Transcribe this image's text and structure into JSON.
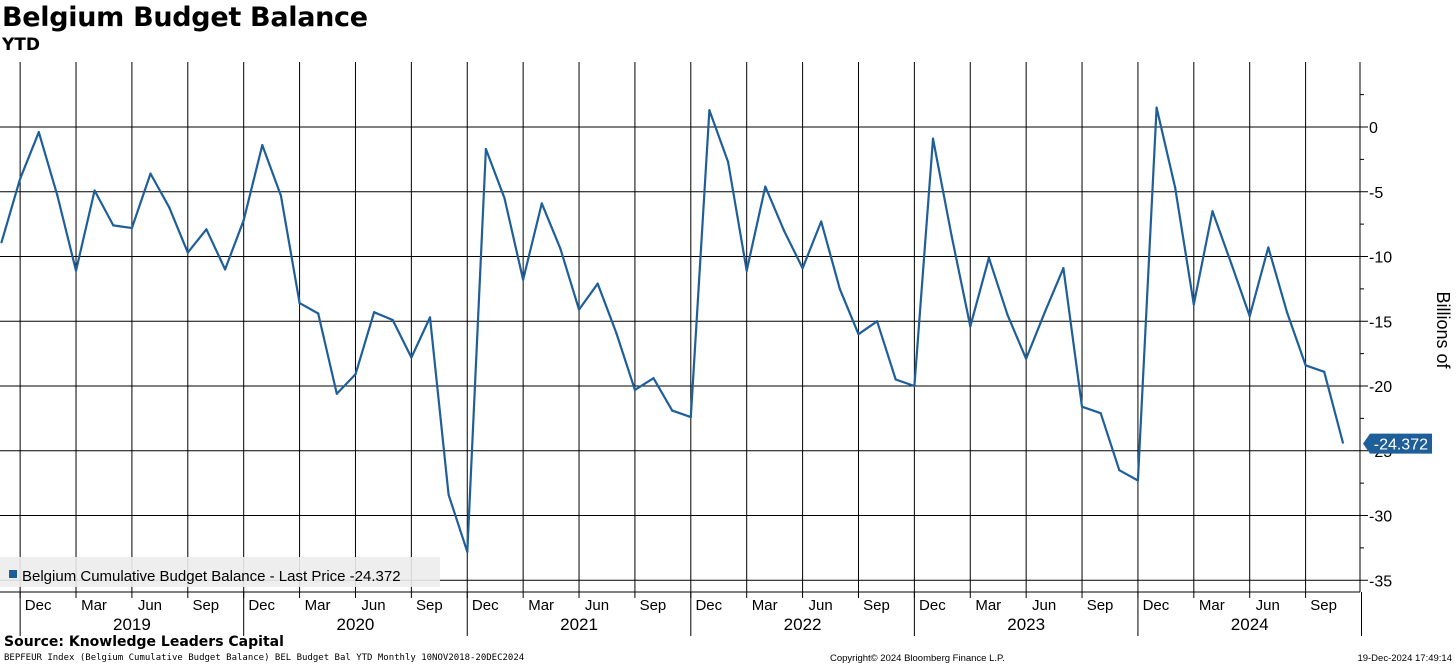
{
  "chart_data": {
    "type": "line",
    "title": "Belgium Budget Balance",
    "subtitle": "YTD",
    "ylabel": "Billions of",
    "ylim": [
      -36,
      5
    ],
    "yticks": [
      0,
      -5,
      -10,
      -15,
      -20,
      -25,
      -30,
      -35
    ],
    "month_ticks": [
      "Dec",
      "Mar",
      "Jun",
      "Sep",
      "Dec",
      "Mar",
      "Jun",
      "Sep",
      "Dec",
      "Mar",
      "Jun",
      "Sep",
      "Dec",
      "Mar",
      "Jun",
      "Sep",
      "Dec",
      "Mar",
      "Jun",
      "Sep",
      "Dec",
      "Mar",
      "Jun",
      "Sep"
    ],
    "year_labels": [
      "2019",
      "2020",
      "2021",
      "2022",
      "2023",
      "2024"
    ],
    "grid": true,
    "legend_position": "bottom-left",
    "series": [
      {
        "name": "Belgium Cumulative Budget Balance - Last Price -24.372",
        "color": "#1f5f99",
        "x": [
          "2018-11",
          "2018-12",
          "2019-01",
          "2019-02",
          "2019-03",
          "2019-04",
          "2019-05",
          "2019-06",
          "2019-07",
          "2019-08",
          "2019-09",
          "2019-10",
          "2019-11",
          "2019-12",
          "2020-01",
          "2020-02",
          "2020-03",
          "2020-04",
          "2020-05",
          "2020-06",
          "2020-07",
          "2020-08",
          "2020-09",
          "2020-10",
          "2020-11",
          "2020-12",
          "2021-01",
          "2021-02",
          "2021-03",
          "2021-04",
          "2021-05",
          "2021-06",
          "2021-07",
          "2021-08",
          "2021-09",
          "2021-10",
          "2021-11",
          "2021-12",
          "2022-01",
          "2022-02",
          "2022-03",
          "2022-04",
          "2022-05",
          "2022-06",
          "2022-07",
          "2022-08",
          "2022-09",
          "2022-10",
          "2022-11",
          "2022-12",
          "2023-01",
          "2023-02",
          "2023-03",
          "2023-04",
          "2023-05",
          "2023-06",
          "2023-07",
          "2023-08",
          "2023-09",
          "2023-10",
          "2023-11",
          "2023-12",
          "2024-01",
          "2024-02",
          "2024-03",
          "2024-04",
          "2024-05",
          "2024-06",
          "2024-07",
          "2024-08",
          "2024-09",
          "2024-10",
          "2024-11"
        ],
        "values": [
          -8.9,
          -4.0,
          -0.4,
          -5.3,
          -11.1,
          -4.9,
          -7.6,
          -7.8,
          -3.6,
          -6.2,
          -9.7,
          -7.9,
          -11.0,
          -7.2,
          -1.4,
          -5.3,
          -13.6,
          -14.4,
          -20.6,
          -19.1,
          -14.3,
          -14.9,
          -17.8,
          -14.7,
          -28.4,
          -32.8,
          -1.7,
          -5.5,
          -11.8,
          -5.9,
          -9.4,
          -14.1,
          -12.1,
          -15.9,
          -20.3,
          -19.4,
          -21.9,
          -22.4,
          1.3,
          -2.7,
          -11.1,
          -4.6,
          -8.0,
          -10.9,
          -7.3,
          -12.5,
          -16.0,
          -15.0,
          -19.5,
          -20.0,
          -0.9,
          -8.4,
          -15.4,
          -10.1,
          -14.5,
          -17.9,
          -14.3,
          -10.9,
          -21.6,
          -22.1,
          -26.5,
          -27.3,
          1.5,
          -4.7,
          -13.7,
          -6.5,
          -10.5,
          -14.6,
          -9.3,
          -14.3,
          -18.4,
          -18.9,
          -24.372
        ]
      }
    ],
    "last_value_label": "-24.372"
  },
  "footer": {
    "source": "Source: Knowledge Leaders Capital",
    "ticker": "BEPFEUR Index (Belgium Cumulative Budget Balance) BEL Budget Bal YTD  Monthly 10NOV2018-20DEC2024",
    "copyright": "Copyright© 2024 Bloomberg Finance L.P.",
    "timestamp": "19-Dec-2024 17:49:14"
  }
}
